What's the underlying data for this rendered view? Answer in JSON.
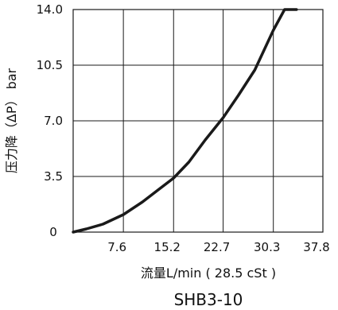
{
  "chart_data": {
    "type": "line",
    "title": "SHB3-10",
    "xlabel": "流量L/min ( 28.5 cSt )",
    "ylabel": "压力降（ΔP） bar",
    "xlim": [
      0,
      37.8
    ],
    "ylim": [
      0,
      14.0
    ],
    "x_ticks": [
      "7.6",
      "15.2",
      "22.7",
      "30.3",
      "37.8"
    ],
    "x_tick_values": [
      7.6,
      15.2,
      22.7,
      30.3,
      37.8
    ],
    "y_ticks": [
      "14.0",
      "10.5",
      "7.0",
      "3.5",
      "0"
    ],
    "y_tick_values": [
      14.0,
      10.5,
      7.0,
      3.5,
      0
    ],
    "grid": true,
    "series": [
      {
        "x": [
          0,
          2.0,
          4.5,
          7.6,
          10.5,
          13.0,
          15.2,
          17.5,
          20.0,
          22.7,
          25.0,
          27.5,
          30.3,
          32.0,
          33.8
        ],
        "y": [
          0,
          0.2,
          0.5,
          1.1,
          1.9,
          2.7,
          3.4,
          4.4,
          5.8,
          7.2,
          8.6,
          10.2,
          12.7,
          14.0,
          14.0
        ]
      }
    ],
    "style": {
      "line_color": "#1a1a1a",
      "grid_color": "#1a1a1a",
      "background": "#ffffff"
    }
  }
}
